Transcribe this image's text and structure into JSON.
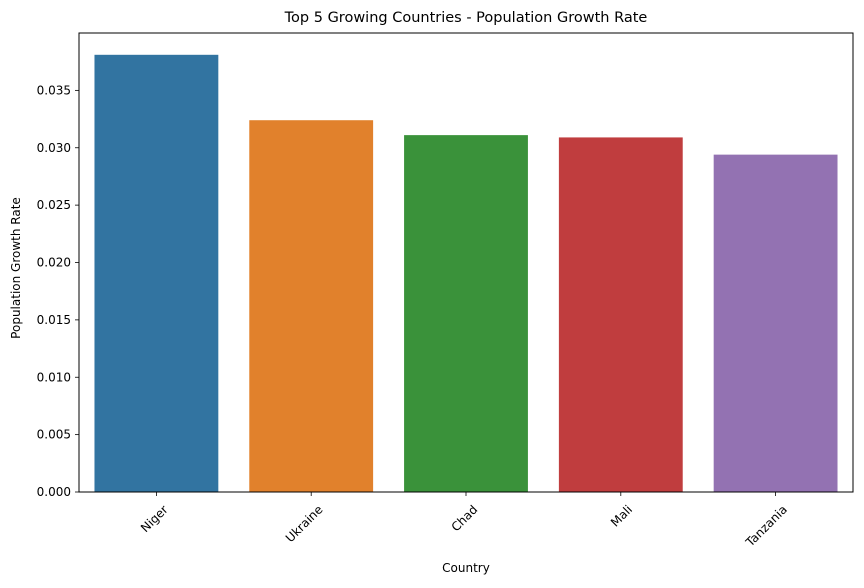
{
  "chart_data": {
    "type": "bar",
    "title": "Top 5 Growing Countries - Population Growth Rate",
    "xlabel": "Country",
    "ylabel": "Population Growth Rate",
    "categories": [
      "Niger",
      "Ukraine",
      "Chad",
      "Mali",
      "Tanzania"
    ],
    "values": [
      0.0381,
      0.0324,
      0.0311,
      0.0309,
      0.0294
    ],
    "colors": [
      "#3274a1",
      "#e1812c",
      "#3a923a",
      "#c03d3e",
      "#9372b2"
    ],
    "ylim": [
      0,
      0.04
    ],
    "yticks": [
      "0.000",
      "0.005",
      "0.010",
      "0.015",
      "0.020",
      "0.025",
      "0.030",
      "0.035"
    ],
    "ytick_values": [
      0,
      0.005,
      0.01,
      0.015,
      0.02,
      0.025,
      0.03,
      0.035
    ],
    "grid": false,
    "legend": "none"
  }
}
